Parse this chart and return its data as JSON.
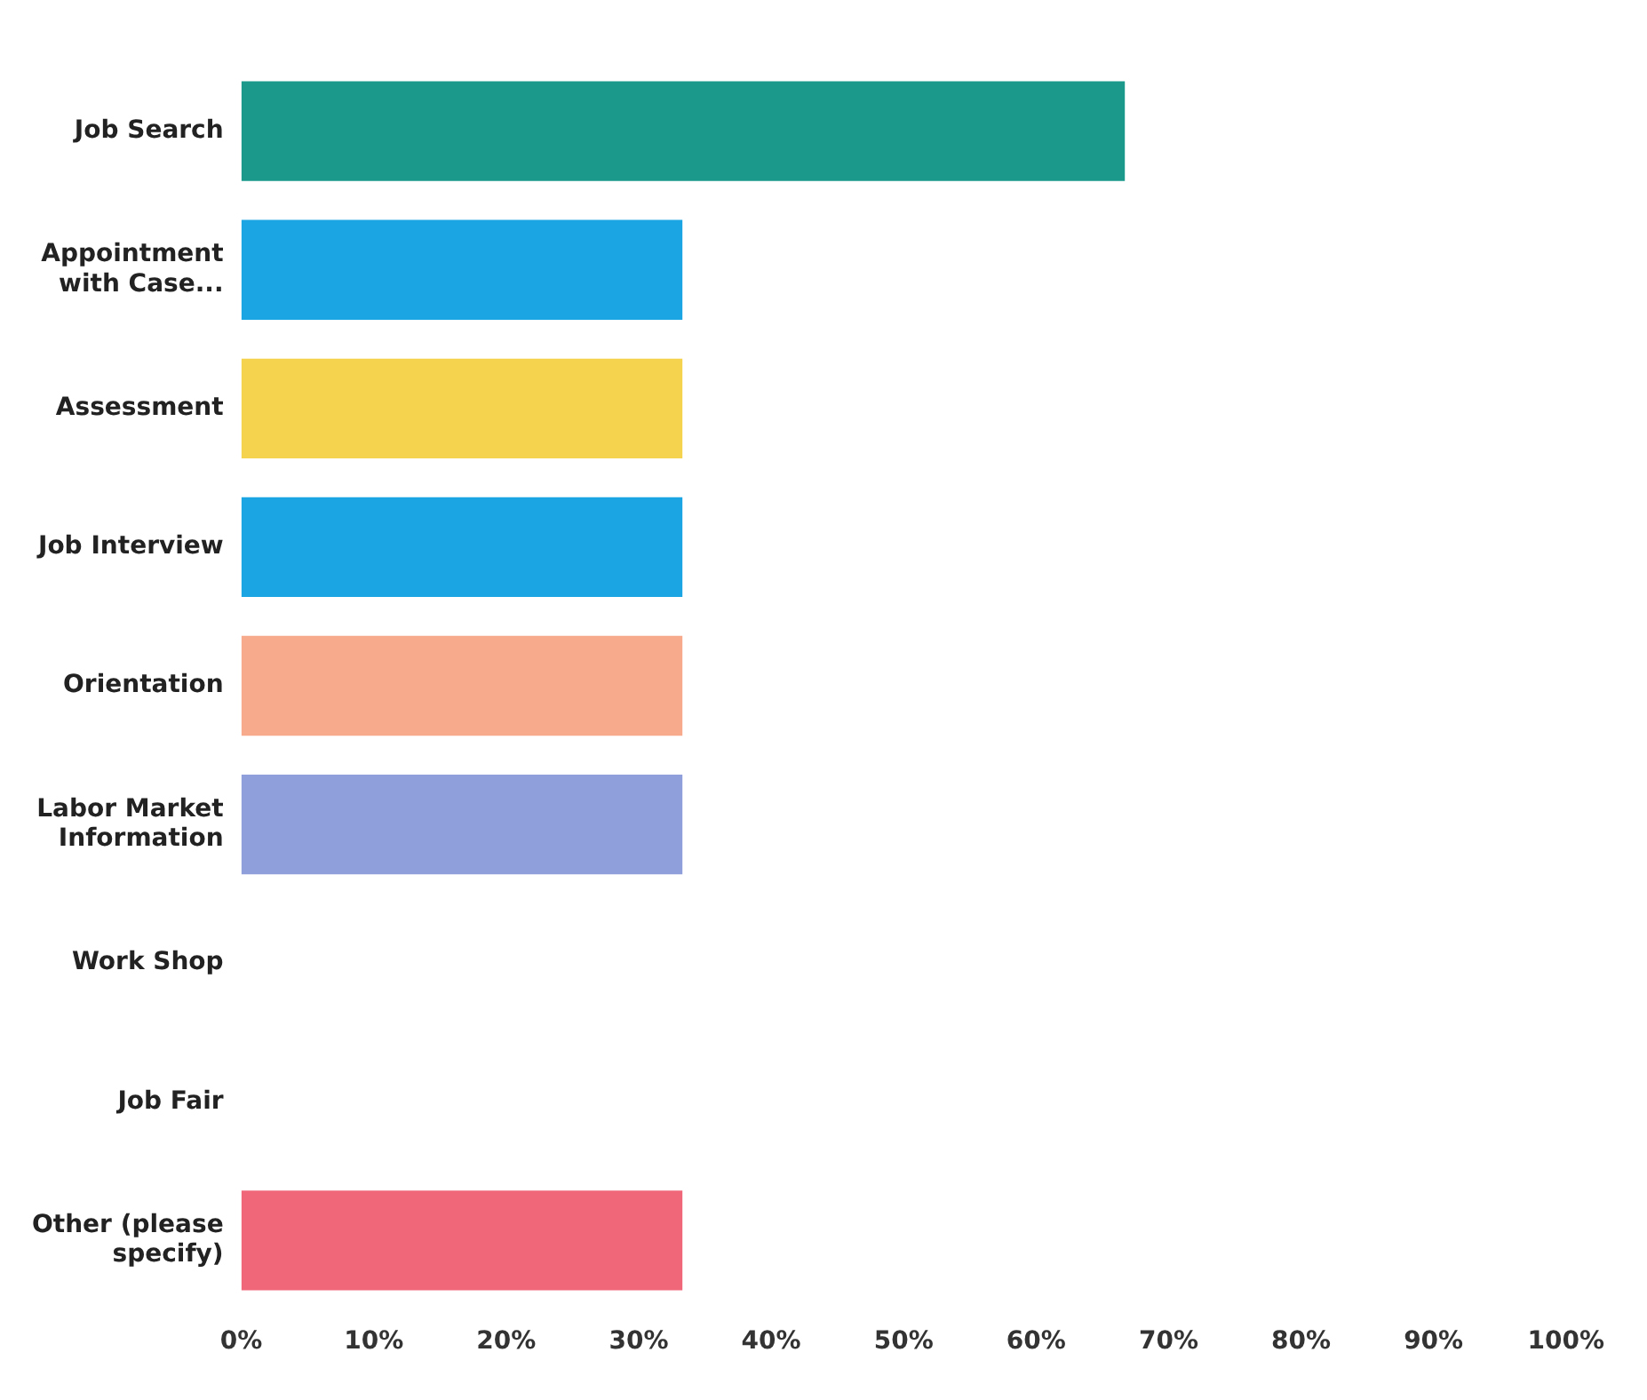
{
  "chart_data": {
    "type": "bar",
    "orientation": "horizontal",
    "categories": [
      "Job Search",
      "Appointment with Case...",
      "Assessment",
      "Job Interview",
      "Orientation",
      "Labor Market Information",
      "Work Shop",
      "Job Fair",
      "Other (please specify)"
    ],
    "values": [
      66.7,
      33.3,
      33.3,
      33.3,
      33.3,
      33.3,
      0,
      0,
      33.3
    ],
    "colors": [
      "#1b9a8b",
      "#1ba5e2",
      "#f6d34f",
      "#1ba5e2",
      "#f7aa8c",
      "#8f9fdb",
      "#888888",
      "#888888",
      "#f0677a"
    ],
    "xlim": [
      0,
      100
    ],
    "xticks": [
      {
        "value": 0,
        "label": "0%"
      },
      {
        "value": 10,
        "label": "10%"
      },
      {
        "value": 20,
        "label": "20%"
      },
      {
        "value": 30,
        "label": "30%"
      },
      {
        "value": 40,
        "label": "40%"
      },
      {
        "value": 50,
        "label": "50%"
      },
      {
        "value": 60,
        "label": "60%"
      },
      {
        "value": 70,
        "label": "70%"
      },
      {
        "value": 80,
        "label": "80%"
      },
      {
        "value": 90,
        "label": "90%"
      },
      {
        "value": 100,
        "label": "100%"
      }
    ],
    "grid": false,
    "legend": false
  }
}
